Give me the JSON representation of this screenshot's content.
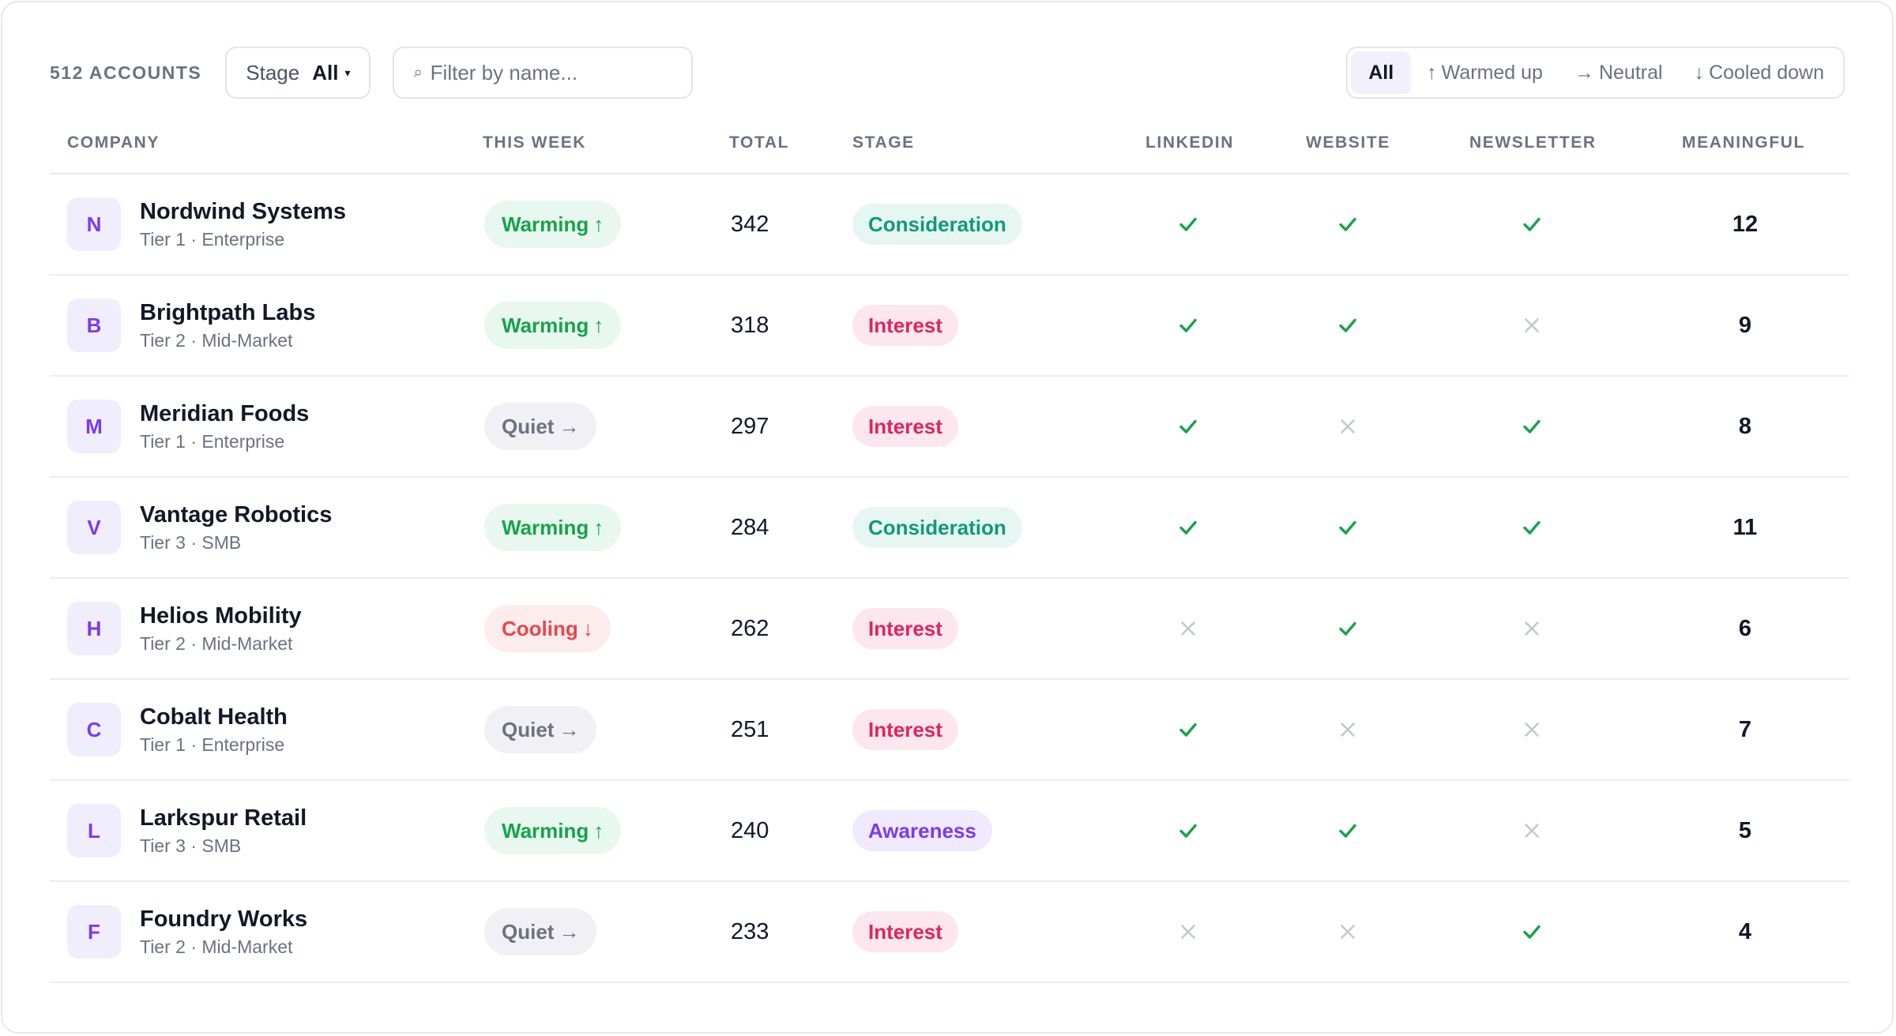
{
  "toolbar": {
    "count_label": "512 ACCOUNTS",
    "stage_label": "Stage",
    "stage_value": "All",
    "filter_placeholder": "Filter by name...",
    "segments": [
      {
        "label": "All",
        "arrow": ""
      },
      {
        "label": "Warmed up",
        "arrow": "↑"
      },
      {
        "label": "Neutral",
        "arrow": "→"
      },
      {
        "label": "Cooled down",
        "arrow": "↓"
      }
    ],
    "active_segment": "All"
  },
  "columns": {
    "company": "COMPANY",
    "this_week": "THIS WEEK",
    "total": "TOTAL",
    "stage": "STAGE",
    "linkedin": "LINKEDIN",
    "website": "WEBSITE",
    "newsletter": "NEWSLETTER",
    "meaningful": "MEANINGFUL"
  },
  "colors": {
    "check": "#16a34a",
    "cross": "#c5c7d0",
    "avatar_text": "#7c3aed"
  },
  "rows": [
    {
      "initial": "N",
      "name": "Nordwind Systems",
      "sub": "Tier 1 · Enterprise",
      "trend": "Warming",
      "trend_type": "warming",
      "total": "342",
      "stage": "Consideration",
      "stage_type": "consideration",
      "linkedin": true,
      "website": true,
      "newsletter": true,
      "meaningful": "12"
    },
    {
      "initial": "B",
      "name": "Brightpath Labs",
      "sub": "Tier 2 · Mid-Market",
      "trend": "Warming",
      "trend_type": "warming",
      "total": "318",
      "stage": "Interest",
      "stage_type": "interest",
      "linkedin": true,
      "website": true,
      "newsletter": false,
      "meaningful": "9"
    },
    {
      "initial": "M",
      "name": "Meridian Foods",
      "sub": "Tier 1 · Enterprise",
      "trend": "Quiet",
      "trend_type": "quiet",
      "total": "297",
      "stage": "Interest",
      "stage_type": "interest",
      "linkedin": true,
      "website": false,
      "newsletter": true,
      "meaningful": "8"
    },
    {
      "initial": "V",
      "name": "Vantage Robotics",
      "sub": "Tier 3 · SMB",
      "trend": "Warming",
      "trend_type": "warming",
      "total": "284",
      "stage": "Consideration",
      "stage_type": "consideration",
      "linkedin": true,
      "website": true,
      "newsletter": true,
      "meaningful": "11"
    },
    {
      "initial": "H",
      "name": "Helios Mobility",
      "sub": "Tier 2 · Mid-Market",
      "trend": "Cooling",
      "trend_type": "cooling",
      "total": "262",
      "stage": "Interest",
      "stage_type": "interest",
      "linkedin": false,
      "website": true,
      "newsletter": false,
      "meaningful": "6"
    },
    {
      "initial": "C",
      "name": "Cobalt Health",
      "sub": "Tier 1 · Enterprise",
      "trend": "Quiet",
      "trend_type": "quiet",
      "total": "251",
      "stage": "Interest",
      "stage_type": "interest",
      "linkedin": true,
      "website": false,
      "newsletter": false,
      "meaningful": "7"
    },
    {
      "initial": "L",
      "name": "Larkspur Retail",
      "sub": "Tier 3 · SMB",
      "trend": "Warming",
      "trend_type": "warming",
      "total": "240",
      "stage": "Awareness",
      "stage_type": "awareness",
      "linkedin": true,
      "website": true,
      "newsletter": false,
      "meaningful": "5"
    },
    {
      "initial": "F",
      "name": "Foundry Works",
      "sub": "Tier 2 · Mid-Market",
      "trend": "Quiet",
      "trend_type": "quiet",
      "total": "233",
      "stage": "Interest",
      "stage_type": "interest",
      "linkedin": false,
      "website": false,
      "newsletter": true,
      "meaningful": "4"
    }
  ]
}
